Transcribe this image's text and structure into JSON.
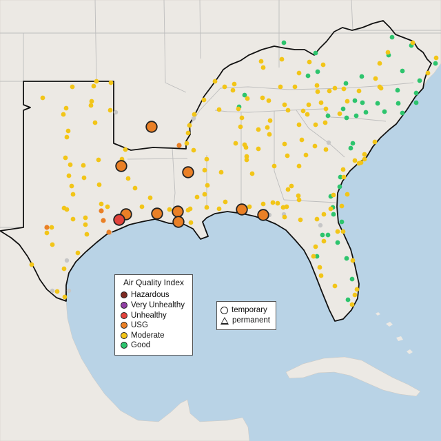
{
  "map": {
    "colors": {
      "water": "#b9d3e6",
      "land": "#ece9e4",
      "land_shade": "#e2ded8",
      "region_border": "#111111",
      "state_border": "#bdbdbd"
    },
    "stations": {
      "large_usg": [
        [
          220,
          184
        ],
        [
          176,
          241
        ],
        [
          273,
          250
        ],
        [
          183,
          311
        ],
        [
          228,
          310
        ],
        [
          258,
          307
        ],
        [
          259,
          322
        ],
        [
          351,
          304
        ],
        [
          382,
          312
        ]
      ],
      "large_unhealthy": [
        [
          173,
          319
        ]
      ],
      "small_usg": [
        [
          260,
          211
        ],
        [
          147,
          306
        ],
        [
          150,
          320
        ],
        [
          68,
          330
        ],
        [
          158,
          337
        ]
      ],
      "good": [
        [
          412,
          62
        ],
        [
          458,
          77
        ],
        [
          569,
          54
        ],
        [
          597,
          66
        ],
        [
          564,
          80
        ],
        [
          632,
          92
        ],
        [
          584,
          103
        ],
        [
          609,
          117
        ],
        [
          447,
          110
        ],
        [
          461,
          104
        ],
        [
          502,
          121
        ],
        [
          515,
          146
        ],
        [
          498,
          158
        ],
        [
          526,
          149
        ],
        [
          548,
          150
        ],
        [
          578,
          150
        ],
        [
          604,
          149
        ],
        [
          503,
          171
        ],
        [
          517,
          168
        ],
        [
          531,
          163
        ],
        [
          558,
          162
        ],
        [
          584,
          164
        ],
        [
          577,
          131
        ],
        [
          604,
          135
        ],
        [
          525,
          111
        ],
        [
          355,
          138
        ],
        [
          347,
          155
        ],
        [
          476,
          168
        ],
        [
          512,
          208
        ],
        [
          509,
          215
        ],
        [
          494,
          257
        ],
        [
          493,
          271
        ],
        [
          480,
          285
        ],
        [
          483,
          301
        ],
        [
          484,
          311
        ],
        [
          496,
          322
        ],
        [
          476,
          341
        ],
        [
          468,
          341
        ],
        [
          490,
          352
        ],
        [
          460,
          372
        ],
        [
          503,
          375
        ],
        [
          511,
          405
        ],
        [
          505,
          435
        ]
      ],
      "gray": [
        [
          168,
          163
        ],
        [
          281,
          172
        ],
        [
          477,
          207
        ],
        [
          97,
          378
        ],
        [
          100,
          422
        ],
        [
          76,
          422
        ],
        [
          160,
          338
        ],
        [
          465,
          327
        ],
        [
          412,
          311
        ],
        [
          391,
          312
        ]
      ],
      "moderate": [
        [
          599,
          62
        ],
        [
          633,
          84
        ],
        [
          621,
          106
        ],
        [
          563,
          76
        ],
        [
          551,
          92
        ],
        [
          545,
          114
        ],
        [
          551,
          126
        ],
        [
          409,
          86
        ],
        [
          379,
          89
        ],
        [
          382,
          98
        ],
        [
          449,
          90
        ],
        [
          469,
          94
        ],
        [
          434,
          106
        ],
        [
          428,
          126
        ],
        [
          407,
          126
        ],
        [
          460,
          124
        ],
        [
          478,
          132
        ],
        [
          486,
          128
        ],
        [
          461,
          133
        ],
        [
          499,
          129
        ],
        [
          381,
          142
        ],
        [
          359,
          143
        ],
        [
          390,
          146
        ],
        [
          413,
          152
        ],
        [
          418,
          160
        ],
        [
          440,
          161
        ],
        [
          448,
          152
        ],
        [
          466,
          149
        ],
        [
          473,
          158
        ],
        [
          493,
          165
        ],
        [
          521,
          132
        ],
        [
          446,
          166
        ],
        [
          458,
          181
        ],
        [
          434,
          181
        ],
        [
          472,
          178
        ],
        [
          438,
          203
        ],
        [
          457,
          212
        ],
        [
          413,
          209
        ],
        [
          444,
          225
        ],
        [
          417,
          226
        ],
        [
          434,
          241
        ],
        [
          423,
          270
        ],
        [
          473,
          217
        ],
        [
          504,
          147
        ],
        [
          553,
          128
        ],
        [
          375,
          188
        ],
        [
          392,
          175
        ],
        [
          391,
          195
        ],
        [
          355,
          210
        ],
        [
          342,
          208
        ],
        [
          357,
          214
        ],
        [
          375,
          216
        ],
        [
          358,
          227
        ],
        [
          358,
          232
        ],
        [
          366,
          252
        ],
        [
          398,
          241
        ],
        [
          388,
          185
        ],
        [
          349,
          184
        ],
        [
          351,
          171
        ],
        [
          326,
          126
        ],
        [
          340,
          122
        ],
        [
          338,
          131
        ],
        [
          346,
          158
        ],
        [
          318,
          159
        ],
        [
          296,
          145
        ],
        [
          312,
          118
        ],
        [
          282,
          166
        ],
        [
          275,
          182
        ],
        [
          273,
          193
        ],
        [
          271,
          208
        ],
        [
          281,
          218
        ],
        [
          300,
          231
        ],
        [
          297,
          247
        ],
        [
          321,
          250
        ],
        [
          301,
          269
        ],
        [
          297,
          282
        ],
        [
          286,
          286
        ],
        [
          300,
          301
        ],
        [
          246,
          304
        ],
        [
          273,
          305
        ],
        [
          276,
          303
        ],
        [
          277,
          323
        ],
        [
          318,
          303
        ],
        [
          327,
          293
        ],
        [
          362,
          300
        ],
        [
          382,
          296
        ],
        [
          396,
          294
        ],
        [
          403,
          295
        ],
        [
          411,
          301
        ],
        [
          434,
          290
        ],
        [
          413,
          315
        ],
        [
          460,
          318
        ],
        [
          470,
          311
        ],
        [
          480,
          303
        ],
        [
          484,
          283
        ],
        [
          515,
          233
        ],
        [
          521,
          237
        ],
        [
          529,
          231
        ],
        [
          544,
          206
        ],
        [
          529,
          224
        ],
        [
          498,
          246
        ],
        [
          499,
          257
        ],
        [
          524,
          236
        ],
        [
          504,
          282
        ],
        [
          496,
          299
        ],
        [
          498,
          336
        ],
        [
          512,
          378
        ],
        [
          518,
          420
        ],
        [
          515,
          428
        ],
        [
          511,
          442
        ],
        [
          486,
          415
        ],
        [
          466,
          400
        ],
        [
          464,
          388
        ],
        [
          455,
          372
        ],
        [
          458,
          358
        ],
        [
          470,
          350
        ],
        [
          490,
          336
        ],
        [
          436,
          319
        ],
        [
          416,
          300
        ],
        [
          433,
          284
        ],
        [
          418,
          275
        ],
        [
          62,
          142
        ],
        [
          96,
          157
        ],
        [
          92,
          166
        ],
        [
          99,
          190
        ],
        [
          97,
          199
        ],
        [
          105,
          126
        ],
        [
          136,
          125
        ],
        [
          140,
          118
        ],
        [
          161,
          120
        ],
        [
          133,
          147
        ],
        [
          132,
          153
        ],
        [
          160,
          160
        ],
        [
          138,
          178
        ],
        [
          95,
          229
        ],
        [
          102,
          239
        ],
        [
          100,
          255
        ],
        [
          121,
          240
        ],
        [
          122,
          258
        ],
        [
          143,
          232
        ],
        [
          144,
          268
        ],
        [
          186,
          259
        ],
        [
          104,
          270
        ],
        [
          106,
          282
        ],
        [
          97,
          304
        ],
        [
          93,
          302
        ],
        [
          106,
          318
        ],
        [
          124,
          316
        ],
        [
          124,
          326
        ],
        [
          126,
          340
        ],
        [
          147,
          296
        ],
        [
          156,
          300
        ],
        [
          75,
          330
        ],
        [
          68,
          338
        ],
        [
          76,
          355
        ],
        [
          46,
          384
        ],
        [
          93,
          390
        ],
        [
          113,
          367
        ],
        [
          83,
          423
        ],
        [
          94,
          431
        ],
        [
          182,
          217
        ],
        [
          177,
          231
        ],
        [
          196,
          273
        ],
        [
          218,
          287
        ],
        [
          206,
          300
        ]
      ]
    }
  },
  "legend": {
    "title": "Air Quality Index",
    "items": [
      {
        "label": "Hazardous",
        "color": "#7e2a22"
      },
      {
        "label": "Very Unhealthy",
        "color": "#8f3fa3"
      },
      {
        "label": "Unhealthy",
        "color": "#e2433c"
      },
      {
        "label": "USG",
        "color": "#ea8026"
      },
      {
        "label": "Moderate",
        "color": "#f2c518"
      },
      {
        "label": "Good",
        "color": "#2dc46d"
      }
    ]
  },
  "site_legend": {
    "temporary_label": "temporary",
    "permanent_label": "permanent"
  }
}
